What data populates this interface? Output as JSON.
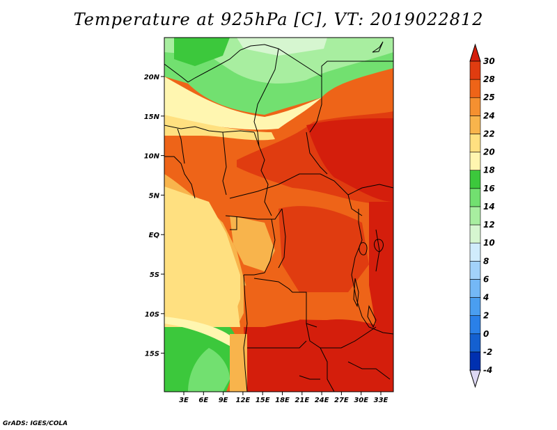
{
  "title": "Temperature at 925hPa [C], VT: 2019022812",
  "credit": "GrADS: IGES/COLA",
  "map": {
    "lat_labels": [
      "20N",
      "15N",
      "10N",
      "5N",
      "EQ",
      "5S",
      "10S",
      "15S"
    ],
    "lon_labels": [
      "3E",
      "6E",
      "9E",
      "12E",
      "15E",
      "18E",
      "21E",
      "24E",
      "27E",
      "30E",
      "33E"
    ]
  },
  "colorbar": {
    "labels": [
      "-4",
      "-2",
      "0",
      "2",
      "4",
      "6",
      "8",
      "10",
      "12",
      "14",
      "16",
      "18",
      "20",
      "22",
      "24",
      "25",
      "28",
      "30"
    ],
    "colors": [
      "#000068",
      "#0030b0",
      "#1460d0",
      "#2a80e8",
      "#4a9ef0",
      "#74b8f6",
      "#a2d2fa",
      "#d0ecfc",
      "#d6f6d0",
      "#a8eea0",
      "#72e070",
      "#3cc83c",
      "#fff6b0",
      "#ffe080",
      "#f8b44c",
      "#f59030",
      "#ee6418",
      "#e03c10",
      "#d41e0c"
    ]
  }
}
